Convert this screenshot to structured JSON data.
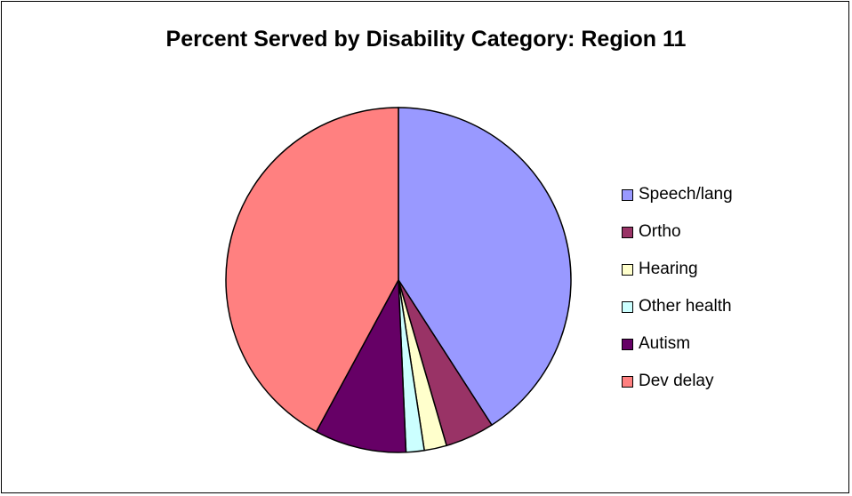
{
  "chart_data": {
    "type": "pie",
    "title": "Percent Served by Disability Category:  Region 11",
    "categories": [
      "Speech/lang",
      "Ortho",
      "Hearing",
      "Other health",
      "Autism",
      "Dev delay"
    ],
    "values": [
      40.9,
      4.6,
      2.1,
      1.7,
      8.6,
      42.1
    ],
    "colors": [
      "#9999FF",
      "#993366",
      "#FFFFCC",
      "#CCFFFF",
      "#660066",
      "#FF8080"
    ],
    "legend_position": "right",
    "start_angle": "12 o'clock",
    "direction": "clockwise"
  }
}
